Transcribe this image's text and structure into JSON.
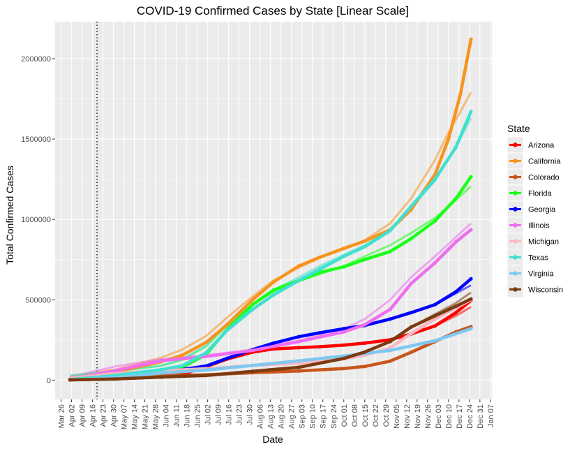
{
  "chart_data": {
    "type": "line",
    "title": "COVID-19 Confirmed Cases by State [Linear Scale]",
    "xlabel": "Date",
    "ylabel": "Total Confirmed Cases",
    "xlim": [
      "2020-03-22",
      "2021-01-08"
    ],
    "ylim": [
      -120000,
      2230000
    ],
    "x_ticks": [
      {
        "date": "2020-03-26",
        "label": "Mar 26"
      },
      {
        "date": "2020-04-02",
        "label": "Apr 02"
      },
      {
        "date": "2020-04-09",
        "label": "Apr 09"
      },
      {
        "date": "2020-04-16",
        "label": "Apr 16"
      },
      {
        "date": "2020-04-23",
        "label": "Apr 23"
      },
      {
        "date": "2020-04-30",
        "label": "Apr 30"
      },
      {
        "date": "2020-05-07",
        "label": "May 07"
      },
      {
        "date": "2020-05-14",
        "label": "May 14"
      },
      {
        "date": "2020-05-21",
        "label": "May 21"
      },
      {
        "date": "2020-05-28",
        "label": "May 28"
      },
      {
        "date": "2020-06-04",
        "label": "Jun 04"
      },
      {
        "date": "2020-06-11",
        "label": "Jun 11"
      },
      {
        "date": "2020-06-18",
        "label": "Jun 18"
      },
      {
        "date": "2020-06-25",
        "label": "Jun 25"
      },
      {
        "date": "2020-07-02",
        "label": "Jul 02"
      },
      {
        "date": "2020-07-09",
        "label": "Jul 09"
      },
      {
        "date": "2020-07-16",
        "label": "Jul 16"
      },
      {
        "date": "2020-07-23",
        "label": "Jul 23"
      },
      {
        "date": "2020-07-30",
        "label": "Jul 30"
      },
      {
        "date": "2020-08-06",
        "label": "Aug 06"
      },
      {
        "date": "2020-08-13",
        "label": "Aug 13"
      },
      {
        "date": "2020-08-20",
        "label": "Aug 20"
      },
      {
        "date": "2020-08-27",
        "label": "Aug 27"
      },
      {
        "date": "2020-09-03",
        "label": "Sep 03"
      },
      {
        "date": "2020-09-10",
        "label": "Sep 10"
      },
      {
        "date": "2020-09-17",
        "label": "Sep 17"
      },
      {
        "date": "2020-09-24",
        "label": "Sep 24"
      },
      {
        "date": "2020-10-01",
        "label": "Oct 01"
      },
      {
        "date": "2020-10-08",
        "label": "Oct 08"
      },
      {
        "date": "2020-10-15",
        "label": "Oct 15"
      },
      {
        "date": "2020-10-22",
        "label": "Oct 22"
      },
      {
        "date": "2020-10-29",
        "label": "Oct 29"
      },
      {
        "date": "2020-11-05",
        "label": "Nov 05"
      },
      {
        "date": "2020-11-12",
        "label": "Nov 12"
      },
      {
        "date": "2020-11-19",
        "label": "Nov 19"
      },
      {
        "date": "2020-11-26",
        "label": "Nov 26"
      },
      {
        "date": "2020-12-03",
        "label": "Dec 03"
      },
      {
        "date": "2020-12-10",
        "label": "Dec 10"
      },
      {
        "date": "2020-12-17",
        "label": "Dec 17"
      },
      {
        "date": "2020-12-24",
        "label": "Dec 24"
      },
      {
        "date": "2020-12-31",
        "label": "Dec 31"
      },
      {
        "date": "2021-01-07",
        "label": "Jan 07"
      }
    ],
    "y_ticks": [
      0,
      500000,
      1000000,
      1500000,
      2000000
    ],
    "vline": {
      "date": "2020-04-19",
      "style": "dotted"
    },
    "grid": true,
    "legend": {
      "title": "State",
      "position": "right"
    },
    "series": [
      {
        "name": "Arizona",
        "color": "#ff0000",
        "x": [
          "2020-04-01",
          "2020-05-01",
          "2020-06-01",
          "2020-06-15",
          "2020-07-01",
          "2020-07-15",
          "2020-08-01",
          "2020-08-15",
          "2020-09-01",
          "2020-09-15",
          "2020-10-01",
          "2020-10-15",
          "2020-11-01",
          "2020-11-15",
          "2020-12-01",
          "2020-12-15",
          "2020-12-25"
        ],
        "y": [
          1500,
          7600,
          20000,
          36000,
          84000,
          131000,
          174000,
          194000,
          202000,
          208000,
          218000,
          230000,
          251000,
          287000,
          337000,
          420000,
          495000
        ],
        "trend": [
          1500,
          7600,
          20000,
          36000,
          84000,
          131000,
          174000,
          194000,
          202000,
          208000,
          218000,
          230000,
          251000,
          287000,
          337000,
          400000,
          455000
        ]
      },
      {
        "name": "California",
        "color": "#f7941d",
        "x": [
          "2020-04-01",
          "2020-05-01",
          "2020-06-01",
          "2020-06-15",
          "2020-07-01",
          "2020-07-15",
          "2020-08-01",
          "2020-08-15",
          "2020-09-01",
          "2020-09-15",
          "2020-10-01",
          "2020-10-15",
          "2020-11-01",
          "2020-11-15",
          "2020-12-01",
          "2020-12-10",
          "2020-12-18",
          "2020-12-25"
        ],
        "y": [
          9000,
          50000,
          115000,
          155000,
          235000,
          345000,
          500000,
          610000,
          710000,
          765000,
          820000,
          865000,
          935000,
          1060000,
          1280000,
          1500000,
          1780000,
          2120000
        ],
        "trend": [
          25000,
          65000,
          140000,
          190000,
          275000,
          390000,
          520000,
          620000,
          700000,
          760000,
          815000,
          870000,
          975000,
          1130000,
          1370000,
          1540000,
          1670000,
          1790000
        ]
      },
      {
        "name": "Colorado",
        "color": "#c8561c",
        "x": [
          "2020-04-01",
          "2020-05-01",
          "2020-06-01",
          "2020-07-01",
          "2020-08-01",
          "2020-09-01",
          "2020-10-01",
          "2020-10-15",
          "2020-11-01",
          "2020-11-15",
          "2020-12-01",
          "2020-12-15",
          "2020-12-25"
        ],
        "y": [
          3500,
          15000,
          27000,
          33000,
          46000,
          57000,
          72000,
          85000,
          118000,
          173000,
          240000,
          300000,
          332000
        ],
        "trend": [
          3500,
          15000,
          27000,
          33000,
          46000,
          57000,
          72000,
          85000,
          118000,
          173000,
          240000,
          295000,
          335000
        ]
      },
      {
        "name": "Florida",
        "color": "#1aff1a",
        "x": [
          "2020-04-01",
          "2020-05-01",
          "2020-06-01",
          "2020-06-15",
          "2020-07-01",
          "2020-07-15",
          "2020-08-01",
          "2020-08-15",
          "2020-09-01",
          "2020-09-15",
          "2020-10-01",
          "2020-10-15",
          "2020-11-01",
          "2020-11-15",
          "2020-12-01",
          "2020-12-15",
          "2020-12-25"
        ],
        "y": [
          7000,
          34000,
          57000,
          80000,
          160000,
          315000,
          470000,
          560000,
          620000,
          670000,
          705000,
          750000,
          800000,
          880000,
          990000,
          1130000,
          1265000
        ],
        "trend": [
          20000,
          55000,
          90000,
          125000,
          210000,
          340000,
          470000,
          550000,
          615000,
          660000,
          710000,
          770000,
          840000,
          915000,
          1010000,
          1120000,
          1205000
        ]
      },
      {
        "name": "Georgia",
        "color": "#0000ff",
        "x": [
          "2020-04-01",
          "2020-05-01",
          "2020-06-01",
          "2020-07-01",
          "2020-07-15",
          "2020-08-01",
          "2020-08-15",
          "2020-09-01",
          "2020-09-15",
          "2020-10-01",
          "2020-10-15",
          "2020-11-01",
          "2020-11-15",
          "2020-12-01",
          "2020-12-15",
          "2020-12-25"
        ],
        "y": [
          4700,
          28000,
          47000,
          88000,
          136000,
          190000,
          230000,
          270000,
          295000,
          320000,
          340000,
          380000,
          420000,
          470000,
          550000,
          630000
        ],
        "trend": [
          4700,
          28000,
          47000,
          88000,
          136000,
          190000,
          230000,
          270000,
          295000,
          320000,
          340000,
          380000,
          420000,
          470000,
          540000,
          590000
        ]
      },
      {
        "name": "Illinois",
        "color": "#ee6df0",
        "x": [
          "2020-04-01",
          "2020-05-01",
          "2020-06-01",
          "2020-07-01",
          "2020-08-01",
          "2020-09-01",
          "2020-10-01",
          "2020-10-15",
          "2020-11-01",
          "2020-11-15",
          "2020-12-01",
          "2020-12-15",
          "2020-12-25"
        ],
        "y": [
          7000,
          58000,
          121000,
          147000,
          185000,
          240000,
          300000,
          345000,
          440000,
          600000,
          730000,
          860000,
          935000
        ],
        "trend": [
          20000,
          85000,
          130000,
          155000,
          190000,
          245000,
          320000,
          380000,
          500000,
          640000,
          770000,
          890000,
          975000
        ]
      },
      {
        "name": "Michigan",
        "color": "#ffb6c1",
        "x": [
          "2020-04-01",
          "2020-05-01",
          "2020-06-01",
          "2020-07-01",
          "2020-08-01",
          "2020-09-01",
          "2020-10-01",
          "2020-10-15",
          "2020-11-01",
          "2020-11-15",
          "2020-12-01",
          "2020-12-15",
          "2020-12-25"
        ],
        "y": [
          10800,
          42000,
          58000,
          71000,
          91000,
          106000,
          133000,
          155000,
          200000,
          290000,
          380000,
          450000,
          500000
        ],
        "trend": [
          10800,
          42000,
          58000,
          71000,
          91000,
          106000,
          133000,
          155000,
          200000,
          290000,
          380000,
          450000,
          500000
        ]
      },
      {
        "name": "Texas",
        "color": "#40e0d0",
        "x": [
          "2020-04-01",
          "2020-05-01",
          "2020-06-01",
          "2020-06-15",
          "2020-07-01",
          "2020-07-15",
          "2020-08-01",
          "2020-08-15",
          "2020-09-01",
          "2020-09-15",
          "2020-10-01",
          "2020-10-15",
          "2020-11-01",
          "2020-11-15",
          "2020-12-01",
          "2020-12-15",
          "2020-12-25"
        ],
        "y": [
          3700,
          29000,
          65000,
          90000,
          170000,
          310000,
          440000,
          530000,
          620000,
          690000,
          770000,
          830000,
          930000,
          1080000,
          1250000,
          1450000,
          1670000
        ],
        "trend": [
          30000,
          55000,
          90000,
          130000,
          215000,
          350000,
          470000,
          560000,
          640000,
          710000,
          780000,
          840000,
          930000,
          1070000,
          1240000,
          1450000,
          1630000
        ]
      },
      {
        "name": "Virginia",
        "color": "#7ec8f0",
        "x": [
          "2020-04-01",
          "2020-05-01",
          "2020-06-01",
          "2020-07-01",
          "2020-08-01",
          "2020-09-01",
          "2020-10-01",
          "2020-11-01",
          "2020-12-01",
          "2020-12-25"
        ],
        "y": [
          1500,
          16000,
          44000,
          63000,
          91000,
          120000,
          150000,
          185000,
          245000,
          320000
        ],
        "trend": [
          1500,
          16000,
          44000,
          63000,
          91000,
          120000,
          150000,
          185000,
          245000,
          320000
        ]
      },
      {
        "name": "Wisconsin",
        "color": "#7b3a10",
        "x": [
          "2020-04-01",
          "2020-05-01",
          "2020-06-01",
          "2020-07-01",
          "2020-08-01",
          "2020-09-01",
          "2020-10-01",
          "2020-10-15",
          "2020-11-01",
          "2020-11-15",
          "2020-12-01",
          "2020-12-15",
          "2020-12-25"
        ],
        "y": [
          1500,
          7300,
          19000,
          29000,
          55000,
          80000,
          135000,
          175000,
          240000,
          330000,
          400000,
          460000,
          505000
        ],
        "trend": [
          1500,
          7300,
          19000,
          29000,
          55000,
          80000,
          135000,
          175000,
          240000,
          330000,
          410000,
          480000,
          545000
        ]
      }
    ]
  }
}
